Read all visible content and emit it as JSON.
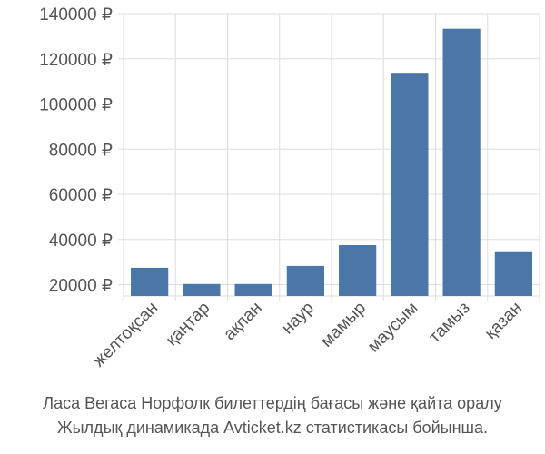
{
  "chart_data": {
    "type": "bar",
    "categories": [
      "желтоқсан",
      "қаңтар",
      "ақпан",
      "наур",
      "мамыр",
      "маусым",
      "тамыз",
      "қазан"
    ],
    "values": [
      27500,
      20300,
      20300,
      28300,
      37500,
      113800,
      133300,
      34800
    ],
    "ytick_labels": [
      "20000 ₽",
      "40000 ₽",
      "60000 ₽",
      "80000 ₽",
      "100000 ₽",
      "120000 ₽",
      "140000 ₽"
    ],
    "yticks": [
      20000,
      40000,
      60000,
      80000,
      100000,
      120000,
      140000
    ],
    "ylim": [
      15000,
      140000
    ],
    "bar_color": "#4a76a8",
    "grid": true
  },
  "caption": {
    "line1": "Ласа Вегаса Норфолк билеттердің бағасы және қайта оралу",
    "line2": "Жылдық динамикада Avticket.kz статистикасы бойынша."
  }
}
